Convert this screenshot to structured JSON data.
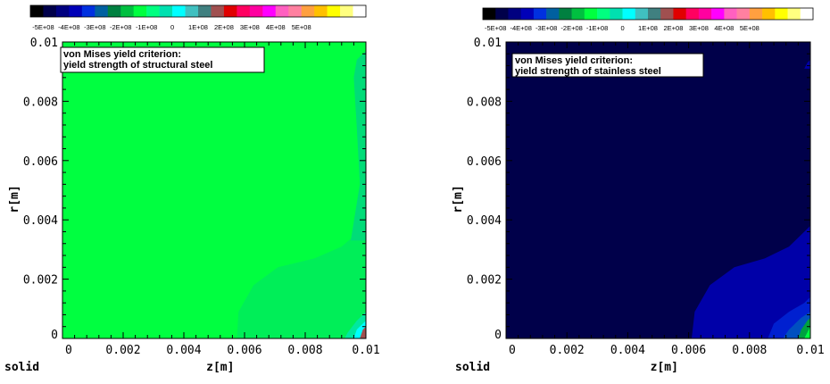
{
  "chart_data": [
    {
      "type": "heatmap",
      "colorbar": {
        "labels": [
          "-5E+08",
          "-4E+08",
          "-3E+08",
          "-2E+08",
          "-1E+08",
          "0",
          "1E+08",
          "2E+08",
          "3E+08",
          "4E+08",
          "5E+08"
        ],
        "colors": [
          "#000000",
          "#00004a",
          "#000080",
          "#0000b8",
          "#0030e0",
          "#0060a0",
          "#008040",
          "#00c040",
          "#00ff40",
          "#00ff80",
          "#00e0b0",
          "#00ffff",
          "#40c0c0",
          "#408080",
          "#a05050",
          "#e00000",
          "#ff0060",
          "#ff00a0",
          "#ff00ff",
          "#ff60c0",
          "#ff80a0",
          "#ffa040",
          "#ffc000",
          "#ffff00",
          "#ffff80",
          "#ffffff"
        ],
        "vmin": -500000000,
        "vmax": 500000000
      },
      "annotation": [
        "von Mises yield criterion:",
        "yield strength of  structural steel"
      ],
      "xlabel": "z[m]",
      "ylabel": "r[m]",
      "corner_label": "solid",
      "xlim": [
        0,
        0.01
      ],
      "ylim": [
        0,
        0.01
      ],
      "xticks": [
        "0",
        "0.002",
        "0.004",
        "0.006",
        "0.008",
        "0.01"
      ],
      "yticks": [
        "0",
        "0.002",
        "0.004",
        "0.006",
        "0.008",
        "0.01"
      ],
      "background": "#00ff40",
      "contours": [
        {
          "color": "#00ee58",
          "points": [
            [
              0.00575,
              0
            ],
            [
              0.0058,
              0.0009
            ],
            [
              0.0063,
              0.0018
            ],
            [
              0.0071,
              0.0024
            ],
            [
              0.0083,
              0.0027
            ],
            [
              0.0092,
              0.0031
            ],
            [
              0.01,
              0.0038
            ],
            [
              0.01,
              0
            ]
          ]
        },
        {
          "color": "#00dc78",
          "points": [
            [
              0.0095,
              0.0033
            ],
            [
              0.0098,
              0.0052
            ],
            [
              0.0097,
              0.0071
            ],
            [
              0.0096,
              0.0088
            ],
            [
              0.0097,
              0.0094
            ],
            [
              0.01,
              0.0097
            ],
            [
              0.01,
              0.0033
            ]
          ]
        },
        {
          "color": "#00e8a0",
          "points": [
            [
              0.0093,
              0
            ],
            [
              0.0094,
              0.0002
            ],
            [
              0.0097,
              0.0006
            ],
            [
              0.01,
              0.0009
            ],
            [
              0.01,
              0
            ]
          ]
        },
        {
          "color": "#00ffff",
          "points": [
            [
              0.0096,
              0
            ],
            [
              0.0097,
              0.0003
            ],
            [
              0.0099,
              0.0005
            ],
            [
              0.01,
              0.0006
            ],
            [
              0.01,
              0
            ]
          ]
        },
        {
          "color": "#a05050",
          "points": [
            [
              0.0098,
              0
            ],
            [
              0.0099,
              0.0003
            ],
            [
              0.01,
              0.0004
            ],
            [
              0.01,
              0
            ]
          ]
        }
      ]
    },
    {
      "type": "heatmap",
      "colorbar": {
        "labels": [
          "-5E+08",
          "-4E+08",
          "-3E+08",
          "-2E+08",
          "-1E+08",
          "0",
          "1E+08",
          "2E+08",
          "3E+08",
          "4E+08",
          "5E+08"
        ],
        "colors": [
          "#000000",
          "#00004a",
          "#000080",
          "#0000b8",
          "#0030e0",
          "#0060a0",
          "#008040",
          "#00c040",
          "#00ff40",
          "#00ff80",
          "#00e0b0",
          "#00ffff",
          "#40c0c0",
          "#408080",
          "#a05050",
          "#e00000",
          "#ff0060",
          "#ff00a0",
          "#ff00ff",
          "#ff60c0",
          "#ff80a0",
          "#ffa040",
          "#ffc000",
          "#ffff00",
          "#ffff80",
          "#ffffff"
        ],
        "vmin": -500000000,
        "vmax": 500000000
      },
      "annotation": [
        "von Mises yield criterion:",
        "yield strength of  stainless steel"
      ],
      "xlabel": "z[m]",
      "ylabel": "r[m]",
      "corner_label": "solid",
      "xlim": [
        0,
        0.01
      ],
      "ylim": [
        0,
        0.01
      ],
      "xticks": [
        "0",
        "0.002",
        "0.004",
        "0.006",
        "0.008",
        "0.01"
      ],
      "yticks": [
        "0",
        "0.002",
        "0.004",
        "0.006",
        "0.008",
        "0.01"
      ],
      "background": "#00004a",
      "contours": [
        {
          "color": "#0000a8",
          "points": [
            [
              0.0061,
              0
            ],
            [
              0.0062,
              0.0009
            ],
            [
              0.0067,
              0.0018
            ],
            [
              0.0075,
              0.0024
            ],
            [
              0.0085,
              0.0027
            ],
            [
              0.0093,
              0.0031
            ],
            [
              0.01,
              0.0038
            ],
            [
              0.01,
              0
            ]
          ]
        },
        {
          "color": "#0020d0",
          "points": [
            [
              0.0086,
              0
            ],
            [
              0.0088,
              0.0005
            ],
            [
              0.0093,
              0.0009
            ],
            [
              0.0098,
              0.0012
            ],
            [
              0.01,
              0.0014
            ],
            [
              0.01,
              0
            ]
          ]
        },
        {
          "color": "#0050c0",
          "points": [
            [
              0.0091,
              0
            ],
            [
              0.0093,
              0.0003
            ],
            [
              0.0097,
              0.0007
            ],
            [
              0.01,
              0.0009
            ],
            [
              0.01,
              0
            ]
          ]
        },
        {
          "color": "#00a040",
          "points": [
            [
              0.0096,
              0
            ],
            [
              0.0097,
              0.0003
            ],
            [
              0.0099,
              0.0006
            ],
            [
              0.01,
              0.0007
            ],
            [
              0.01,
              0
            ]
          ]
        },
        {
          "color": "#00ff40",
          "points": [
            [
              0.0098,
              0
            ],
            [
              0.0099,
              0.0002
            ],
            [
              0.01,
              0.0004
            ],
            [
              0.01,
              0
            ]
          ]
        },
        {
          "color": "#0000a8",
          "points": [
            [
              0.0098,
              0.0091
            ],
            [
              0.0099,
              0.0093
            ],
            [
              0.01,
              0.0094
            ],
            [
              0.01,
              0.0091
            ]
          ]
        }
      ]
    }
  ]
}
